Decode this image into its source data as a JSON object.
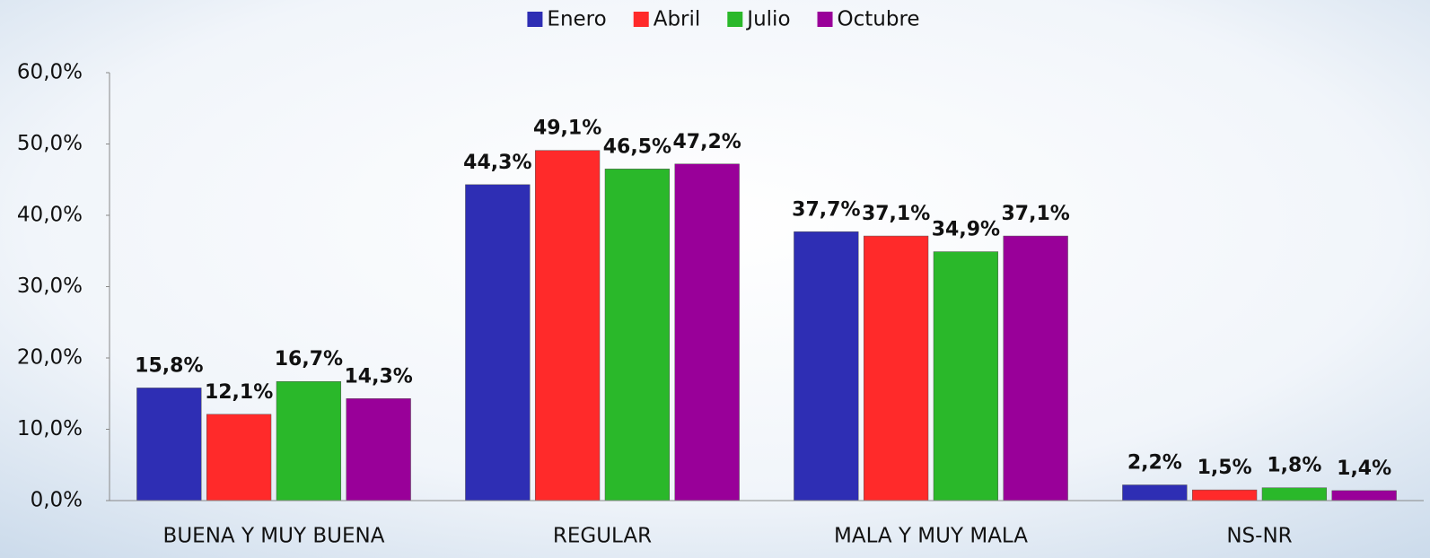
{
  "chart_data": {
    "type": "bar",
    "categories": [
      "BUENA Y MUY BUENA",
      "REGULAR",
      "MALA Y MUY MALA",
      "NS-NR"
    ],
    "series": [
      {
        "name": "Enero",
        "color": "#2e2eb4",
        "values": [
          15.8,
          44.3,
          37.7,
          2.2
        ],
        "value_labels": [
          "15,8%",
          "44,3%",
          "37,7%",
          "2,2%"
        ]
      },
      {
        "name": "Abril",
        "color": "#ff2a2a",
        "values": [
          12.1,
          49.1,
          37.1,
          1.5
        ],
        "value_labels": [
          "12,1%",
          "49,1%",
          "37,1%",
          "1,5%"
        ]
      },
      {
        "name": "Julio",
        "color": "#2ab82a",
        "values": [
          16.7,
          46.5,
          34.9,
          1.8
        ],
        "value_labels": [
          "16,7%",
          "46,5%",
          "34,9%",
          "1,8%"
        ]
      },
      {
        "name": "Octubre",
        "color": "#990099",
        "values": [
          14.3,
          47.2,
          37.1,
          1.4
        ],
        "value_labels": [
          "14,3%",
          "47,2%",
          "37,1%",
          "1,4%"
        ]
      }
    ],
    "ylim": [
      0,
      60
    ],
    "yticks": [
      {
        "value": 0,
        "label": "0,0%"
      },
      {
        "value": 10,
        "label": "10,0%"
      },
      {
        "value": 20,
        "label": "20,0%"
      },
      {
        "value": 30,
        "label": "30,0%"
      },
      {
        "value": 40,
        "label": "40,0%"
      },
      {
        "value": 50,
        "label": "50,0%"
      },
      {
        "value": 60,
        "label": "60,0%"
      }
    ],
    "legend": "top"
  }
}
